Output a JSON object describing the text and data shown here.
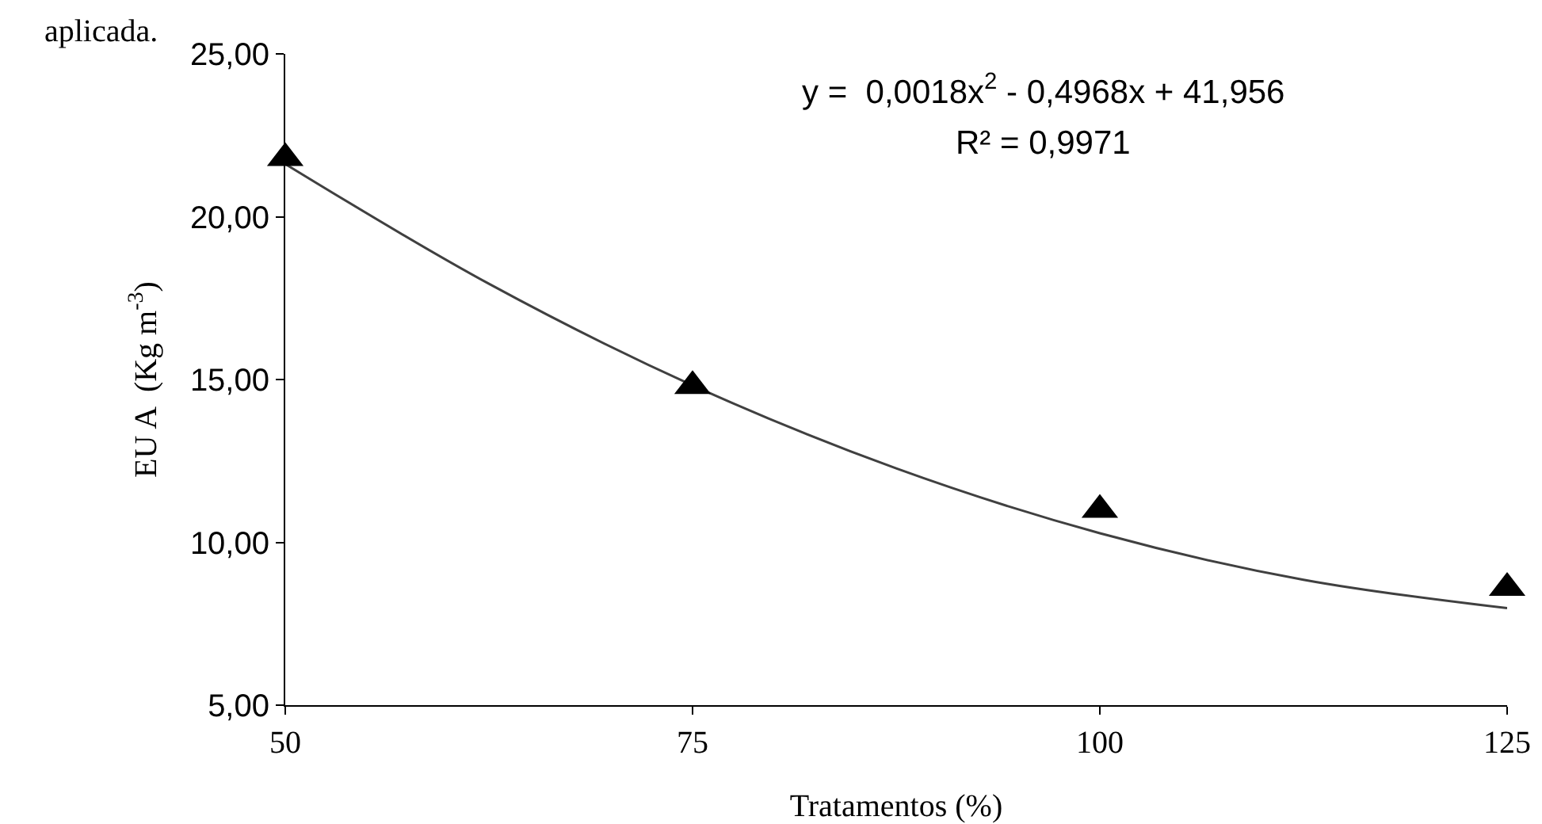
{
  "chart_data": {
    "type": "scatter",
    "xlabel": "Tratamentos (%)",
    "ylabel": "EU A  (Kg m$^{-3}$)",
    "x": [
      50,
      75,
      100,
      125
    ],
    "series": [
      {
        "color": "#000000",
        "marker": "triangle",
        "values": [
          21.8,
          14.8,
          11.0,
          8.6
        ]
      },
      {
        "type": "line",
        "color": "#404040",
        "marker": "none",
        "line_style": "solid",
        "x": [
          50,
          62.5,
          75,
          87.5,
          100,
          112.5,
          125
        ],
        "values": [
          21.62,
          17.94,
          14.82,
          12.27,
          10.28,
          8.85,
          7.98
        ]
      }
    ],
    "xlim": [
      50,
      125
    ],
    "xticks": [
      50,
      75,
      100,
      125
    ],
    "ylim": [
      5,
      25
    ],
    "yticks": [
      {
        "value": 5,
        "label": "5,00"
      },
      {
        "value": 10,
        "label": "10,00"
      },
      {
        "value": 15,
        "label": "15,00"
      },
      {
        "value": 20,
        "label": "20,00"
      },
      {
        "value": 25,
        "label": "25,00"
      }
    ],
    "grid": false,
    "annotations": [
      "aplicada.",
      "y =  0,0018x$^{2}$ - 0,4968x + 41,956",
      "R² = 0,9971"
    ]
  }
}
